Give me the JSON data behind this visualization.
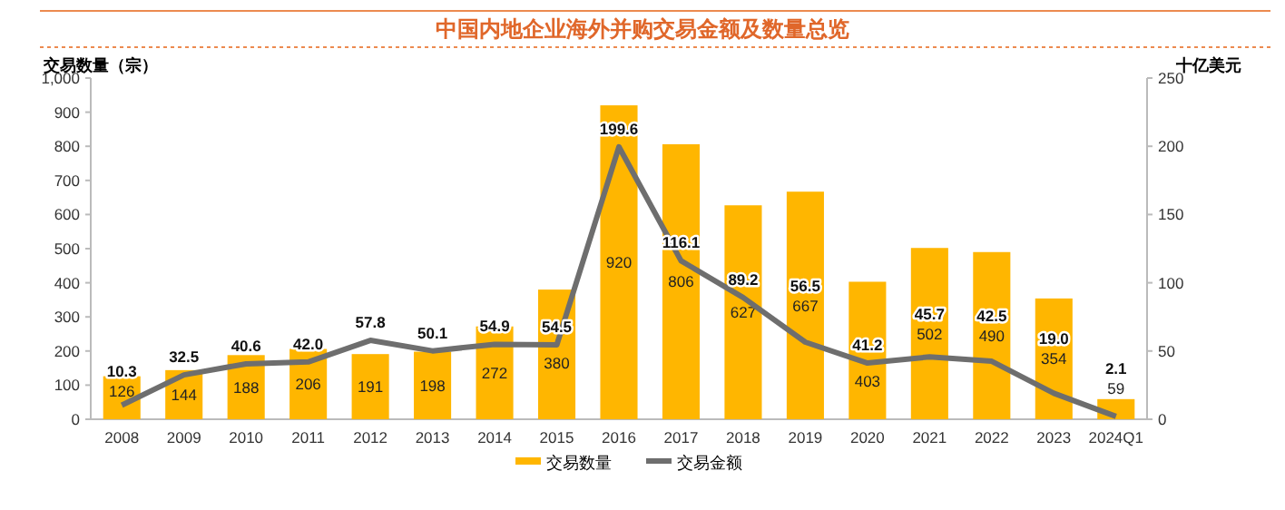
{
  "chart_data": {
    "type": "bar",
    "title": "中国内地企业海外并购交易金额及数量总览",
    "ylabel": "交易数量（宗）",
    "y2label": "十亿美元",
    "categories": [
      "2008",
      "2009",
      "2010",
      "2011",
      "2012",
      "2013",
      "2014",
      "2015",
      "2016",
      "2017",
      "2018",
      "2019",
      "2020",
      "2021",
      "2022",
      "2023",
      "2024Q1"
    ],
    "series": [
      {
        "name": "交易数量",
        "color": "#ffb600",
        "values": [
          126,
          144,
          188,
          206,
          191,
          198,
          272,
          380,
          920,
          806,
          627,
          667,
          403,
          502,
          490,
          354,
          59
        ],
        "value_labels": [
          "126",
          "144",
          "188",
          "206",
          "191",
          "198",
          "272",
          "380",
          "920",
          "806",
          "627",
          "667",
          "403",
          "502",
          "490",
          "354",
          "59"
        ]
      },
      {
        "name": "交易金额",
        "type": "line",
        "axis": "y2",
        "color": "#6e6e6e",
        "values": [
          10.3,
          32.5,
          40.6,
          42.0,
          57.8,
          50.1,
          54.9,
          54.5,
          199.6,
          116.1,
          89.2,
          56.5,
          41.2,
          45.7,
          42.5,
          19.0,
          2.1
        ],
        "value_labels": [
          "10.3",
          "32.5",
          "40.6",
          "42.0",
          "57.8",
          "50.1",
          "54.9",
          "54.5",
          "199.6",
          "116.1",
          "89.2",
          "56.5",
          "41.2",
          "45.7",
          "42.5",
          "19.0",
          "2.1"
        ]
      }
    ],
    "ylim": [
      0,
      1000
    ],
    "yticks": [
      0,
      100,
      200,
      300,
      400,
      500,
      600,
      700,
      800,
      {
        "value": 900,
        "label": "900"
      },
      {
        "value": 1000,
        "label": "1,000"
      }
    ],
    "y2lim": [
      0,
      250
    ],
    "y2ticks": [
      0,
      50,
      100,
      150,
      200,
      250
    ],
    "grid": false,
    "legend": "bottom",
    "marker": "none",
    "line_style": "solid"
  }
}
